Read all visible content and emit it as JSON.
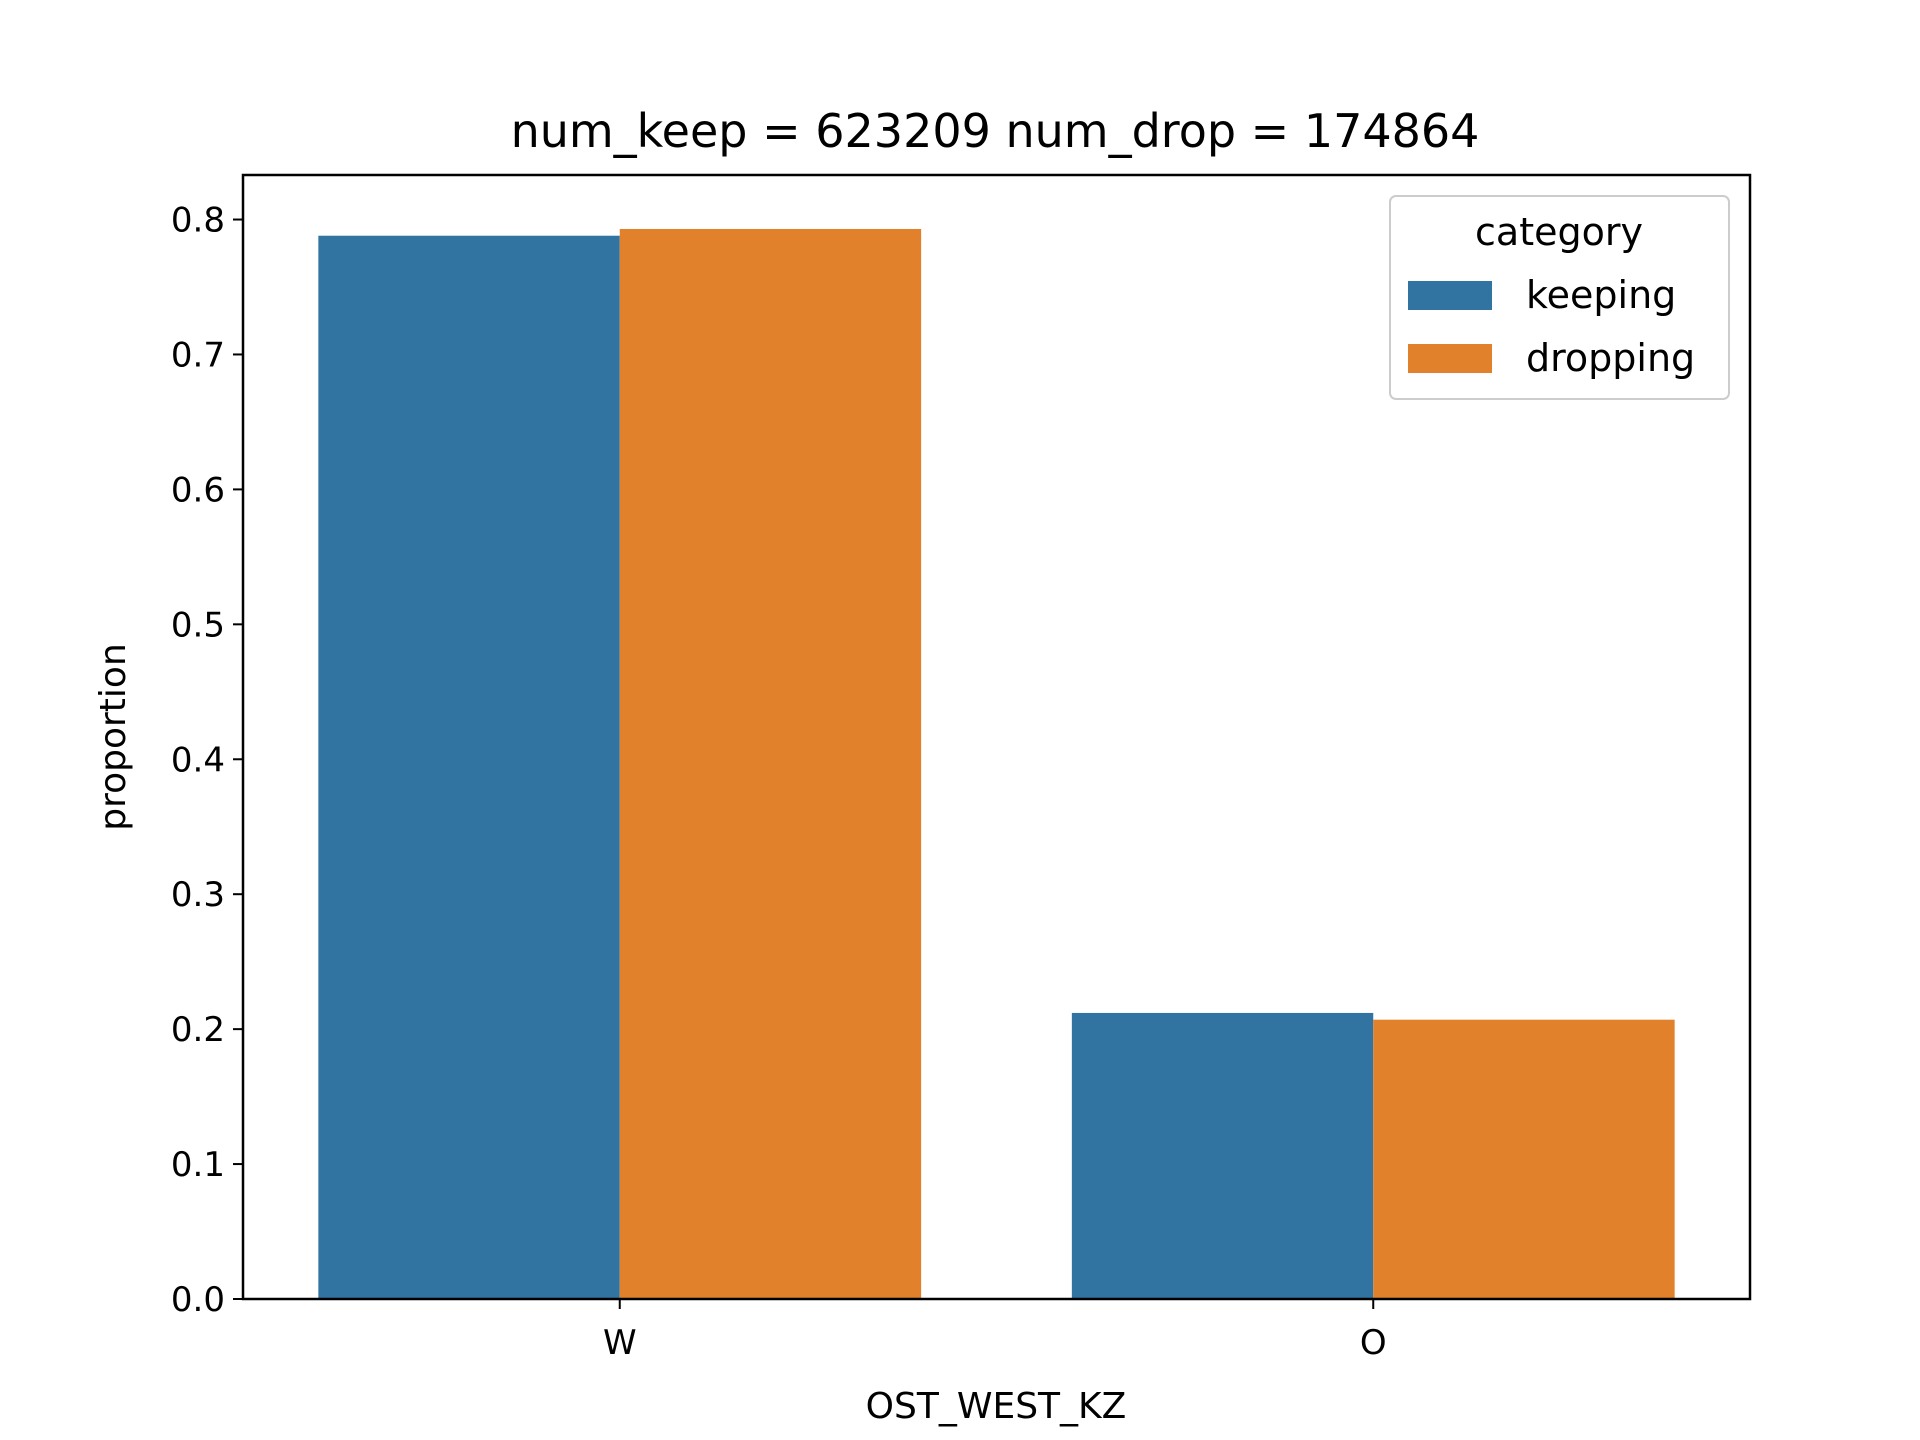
{
  "chart_data": {
    "type": "bar",
    "title": "num_keep = 623209  num_drop = 174864",
    "xlabel": "OST_WEST_KZ",
    "ylabel": "proportion",
    "categories": [
      "W",
      "O"
    ],
    "series": [
      {
        "name": "keeping",
        "values": [
          0.788,
          0.212
        ],
        "color": "#3274a1"
      },
      {
        "name": "dropping",
        "values": [
          0.793,
          0.207
        ],
        "color": "#e1812c"
      }
    ],
    "ylim": [
      0,
      0.833
    ],
    "yticks": [
      0.0,
      0.1,
      0.2,
      0.3,
      0.4,
      0.5,
      0.6,
      0.7,
      0.8
    ],
    "grid": false,
    "legend": {
      "title": "category",
      "placement": "top-right"
    }
  }
}
